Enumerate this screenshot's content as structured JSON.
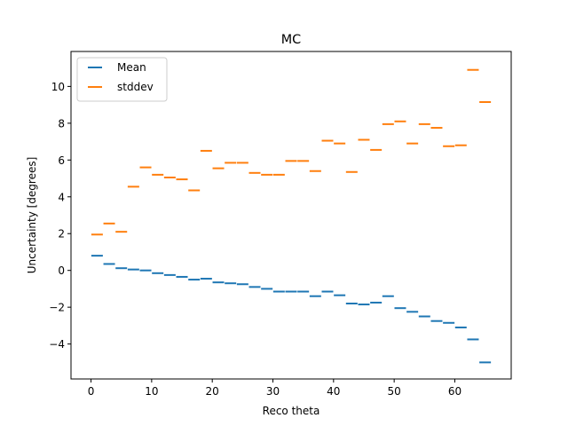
{
  "chart_data": {
    "type": "scatter",
    "marker": "horizontal-dash",
    "title": "MC",
    "xlabel": "Reco theta",
    "ylabel": "Uncertainty [degrees]",
    "xlim": [
      -3.3,
      69.3
    ],
    "ylim": [
      -5.9,
      11.9
    ],
    "xticks": [
      0,
      10,
      20,
      30,
      40,
      50,
      60
    ],
    "yticks": [
      -4,
      -2,
      0,
      2,
      4,
      6,
      8,
      10
    ],
    "grid": false,
    "legend_position": "top-left",
    "x": [
      1,
      3,
      5,
      7,
      9,
      11,
      13,
      15,
      17,
      19,
      21,
      23,
      25,
      27,
      29,
      31,
      33,
      35,
      37,
      39,
      41,
      43,
      45,
      47,
      49,
      51,
      53,
      55,
      57,
      59,
      61,
      63,
      65
    ],
    "series": [
      {
        "name": "Mean",
        "color": "#1f77b4",
        "values": [
          0.8,
          0.35,
          0.12,
          0.05,
          0.0,
          -0.15,
          -0.25,
          -0.35,
          -0.5,
          -0.45,
          -0.65,
          -0.7,
          -0.75,
          -0.9,
          -1.0,
          -1.15,
          -1.15,
          -1.15,
          -1.4,
          -1.15,
          -1.35,
          -1.8,
          -1.85,
          -1.75,
          -1.4,
          -2.05,
          -2.25,
          -2.5,
          -2.75,
          -2.85,
          -3.1,
          -3.75,
          -5.0
        ]
      },
      {
        "name": "stddev",
        "color": "#ff7f0e",
        "values": [
          1.95,
          2.55,
          2.1,
          4.55,
          5.6,
          5.2,
          5.05,
          4.95,
          4.35,
          6.5,
          5.55,
          5.85,
          5.85,
          5.3,
          5.2,
          5.2,
          5.95,
          5.95,
          5.4,
          7.05,
          6.9,
          5.35,
          7.1,
          6.55,
          7.95,
          8.1,
          6.9,
          7.95,
          7.75,
          6.75,
          6.8,
          10.9,
          9.15
        ]
      }
    ]
  }
}
